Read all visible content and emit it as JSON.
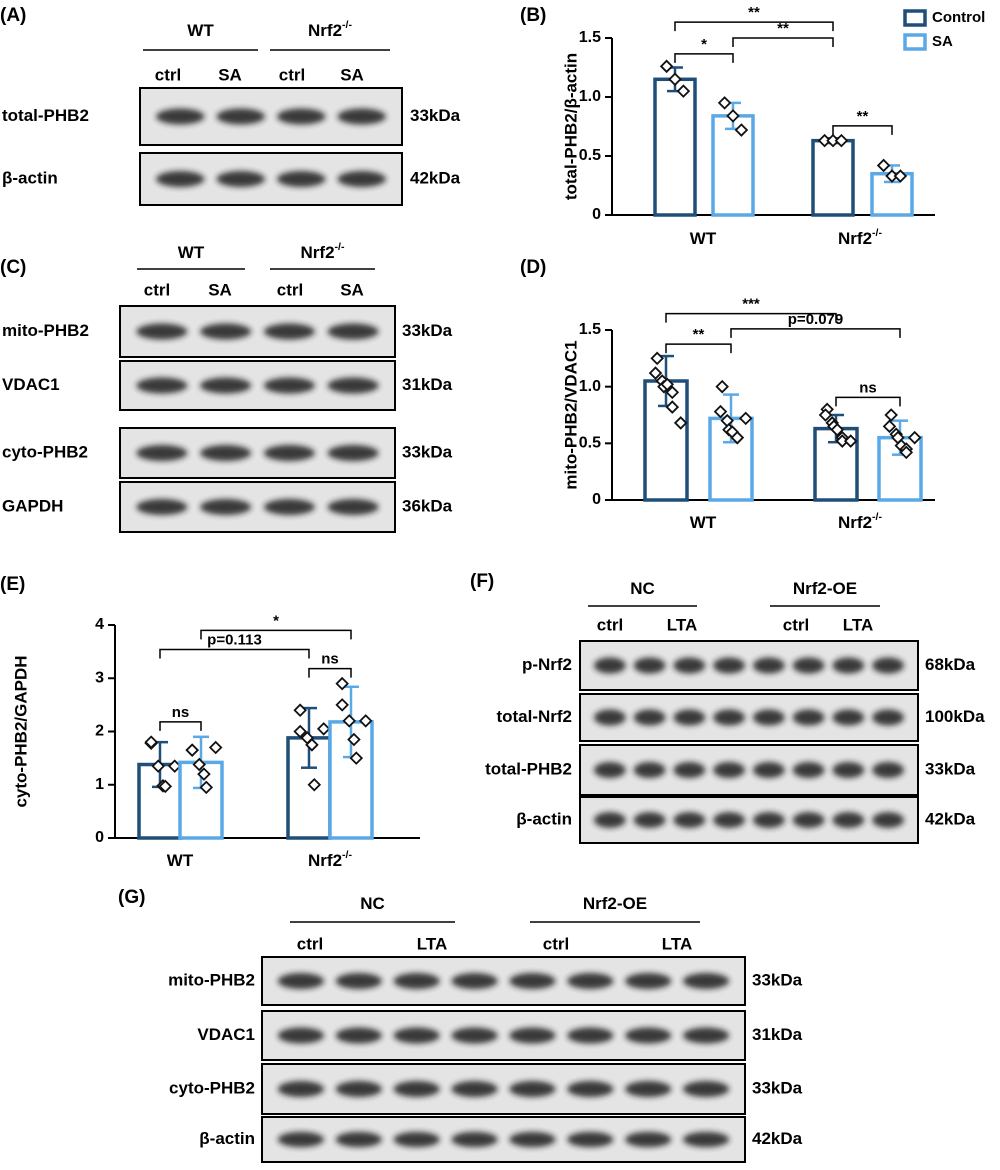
{
  "blots": [
    {
      "label": "(A)",
      "groups": [
        {
          "name": "WT"
        },
        {
          "name": "Nrf2",
          "sup": "-/-"
        }
      ],
      "lanes": [
        "ctrl",
        "SA",
        "ctrl",
        "SA"
      ],
      "rows": [
        {
          "name": "total-PHB2",
          "size": "33kDa"
        },
        {
          "name": "β-actin",
          "size": "42kDa"
        }
      ]
    },
    {
      "label": "(C)",
      "groups": [
        {
          "name": "WT"
        },
        {
          "name": "Nrf2",
          "sup": "-/-"
        }
      ],
      "lanes": [
        "ctrl",
        "SA",
        "ctrl",
        "SA"
      ],
      "rows": [
        {
          "name": "mito-PHB2",
          "size": "33kDa"
        },
        {
          "name": "VDAC1",
          "size": "31kDa"
        },
        {
          "name": "cyto-PHB2",
          "size": "33kDa"
        },
        {
          "name": "GAPDH",
          "size": "36kDa"
        }
      ]
    },
    {
      "label": "(F)",
      "groups": [
        {
          "name": "NC"
        },
        {
          "name": "Nrf2-OE"
        }
      ],
      "lanes": [
        "ctrl",
        "LTA",
        "ctrl",
        "LTA"
      ],
      "rows": [
        {
          "name": "p-Nrf2",
          "size": "68kDa"
        },
        {
          "name": "total-Nrf2",
          "size": "100kDa"
        },
        {
          "name": "total-PHB2",
          "size": "33kDa"
        },
        {
          "name": "β-actin",
          "size": "42kDa"
        }
      ]
    },
    {
      "label": "(G)",
      "groups": [
        {
          "name": "NC"
        },
        {
          "name": "Nrf2-OE"
        }
      ],
      "lanes": [
        "ctrl",
        "LTA",
        "ctrl",
        "LTA"
      ],
      "rows": [
        {
          "name": "mito-PHB2",
          "size": "33kDa"
        },
        {
          "name": "VDAC1",
          "size": "31kDa"
        },
        {
          "name": "cyto-PHB2",
          "size": "33kDa"
        },
        {
          "name": "β-actin",
          "size": "42kDa"
        }
      ]
    }
  ],
  "chart_data": [
    {
      "type": "bar",
      "label": "(B)",
      "y_label": "total-PHB2/β-actin",
      "categories": [
        {
          "name": "WT"
        },
        {
          "name": "Nrf2",
          "sup": "-/-"
        }
      ],
      "ylim": [
        0,
        1.5
      ],
      "yticks": [
        0,
        0.5,
        {
          "value": 1,
          "label": "1.0"
        },
        1.5
      ],
      "legend": "top-right",
      "series": [
        {
          "name": "Control",
          "color": "#1f4e79",
          "values": [
            1.15,
            0.63
          ],
          "errors": [
            0.1,
            0.02
          ],
          "points": [
            [
              1.26,
              1.15,
              1.05
            ],
            [
              0.63,
              0.63,
              0.63
            ]
          ]
        },
        {
          "name": "SA",
          "color": "#5aa9e6",
          "values": [
            0.84,
            0.35
          ],
          "errors": [
            0.11,
            0.07
          ],
          "points": [
            [
              0.95,
              0.84,
              0.72
            ],
            [
              0.42,
              0.33,
              0.33
            ]
          ]
        }
      ],
      "comparisons": [
        {
          "a": [
            0,
            0
          ],
          "b": [
            0,
            1
          ],
          "label": "*"
        },
        {
          "a": [
            1,
            0
          ],
          "b": [
            1,
            1
          ],
          "label": "**"
        },
        {
          "a": [
            0,
            1
          ],
          "b": [
            1,
            0
          ],
          "label": "**"
        },
        {
          "a": [
            0,
            0
          ],
          "b": [
            1,
            0
          ],
          "label": "**"
        }
      ]
    },
    {
      "type": "bar",
      "label": "(D)",
      "y_label": "mito-PHB2/VDAC1",
      "categories": [
        {
          "name": "WT"
        },
        {
          "name": "Nrf2",
          "sup": "-/-"
        }
      ],
      "ylim": [
        0,
        1.5
      ],
      "yticks": [
        0,
        0.5,
        {
          "value": 1,
          "label": "1.0"
        },
        1.5
      ],
      "series": [
        {
          "name": "Control",
          "color": "#1f4e79",
          "values": [
            1.05,
            0.63
          ],
          "errors": [
            0.22,
            0.12
          ],
          "points": [
            [
              1.25,
              1.12,
              1.05,
              1.0,
              1.02,
              0.95,
              0.82,
              0.68
            ],
            [
              0.8,
              0.75,
              0.68,
              0.65,
              0.62,
              0.55,
              0.52,
              0.52
            ]
          ]
        },
        {
          "name": "SA",
          "color": "#5aa9e6",
          "values": [
            0.72,
            0.55
          ],
          "errors": [
            0.21,
            0.15
          ],
          "points": [
            [
              1.0,
              0.78,
              0.7,
              0.62,
              0.6,
              0.55,
              0.55,
              0.72
            ],
            [
              0.75,
              0.65,
              0.58,
              0.55,
              0.48,
              0.45,
              0.42,
              0.55
            ]
          ]
        }
      ],
      "comparisons": [
        {
          "a": [
            0,
            0
          ],
          "b": [
            0,
            1
          ],
          "label": "**"
        },
        {
          "a": [
            1,
            0
          ],
          "b": [
            1,
            1
          ],
          "label": "ns"
        },
        {
          "a": [
            0,
            1
          ],
          "b": [
            1,
            1
          ],
          "label": "p=0.079"
        },
        {
          "a": [
            0,
            0
          ],
          "b": [
            1,
            0
          ],
          "label": "***"
        }
      ]
    },
    {
      "type": "bar",
      "label": "(E)",
      "y_label": "cyto-PHB2/GAPDH",
      "categories": [
        {
          "name": "WT"
        },
        {
          "name": "Nrf2",
          "sup": "-/-"
        }
      ],
      "ylim": [
        0,
        4
      ],
      "yticks": [
        0,
        1,
        2,
        3,
        4
      ],
      "series": [
        {
          "name": "Control",
          "color": "#1f4e79",
          "values": [
            1.38,
            1.88
          ],
          "errors": [
            0.42,
            0.56
          ],
          "points": [
            [
              1.78,
              1.8,
              1.35,
              0.98,
              0.97,
              1.35
            ],
            [
              2.4,
              2.0,
              1.88,
              1.75,
              1.0,
              2.05
            ]
          ]
        },
        {
          "name": "SA",
          "color": "#5aa9e6",
          "values": [
            1.42,
            2.18
          ],
          "errors": [
            0.48,
            0.66
          ],
          "points": [
            [
              1.65,
              1.65,
              1.38,
              1.2,
              0.95,
              1.7
            ],
            [
              2.9,
              2.5,
              2.2,
              1.85,
              1.5,
              2.2
            ]
          ]
        }
      ],
      "comparisons": [
        {
          "a": [
            0,
            0
          ],
          "b": [
            0,
            1
          ],
          "label": "ns"
        },
        {
          "a": [
            1,
            0
          ],
          "b": [
            1,
            1
          ],
          "label": "ns"
        },
        {
          "a": [
            0,
            0
          ],
          "b": [
            1,
            0
          ],
          "label": "p=0.113"
        },
        {
          "a": [
            0,
            1
          ],
          "b": [
            1,
            1
          ],
          "label": "*"
        }
      ]
    }
  ]
}
